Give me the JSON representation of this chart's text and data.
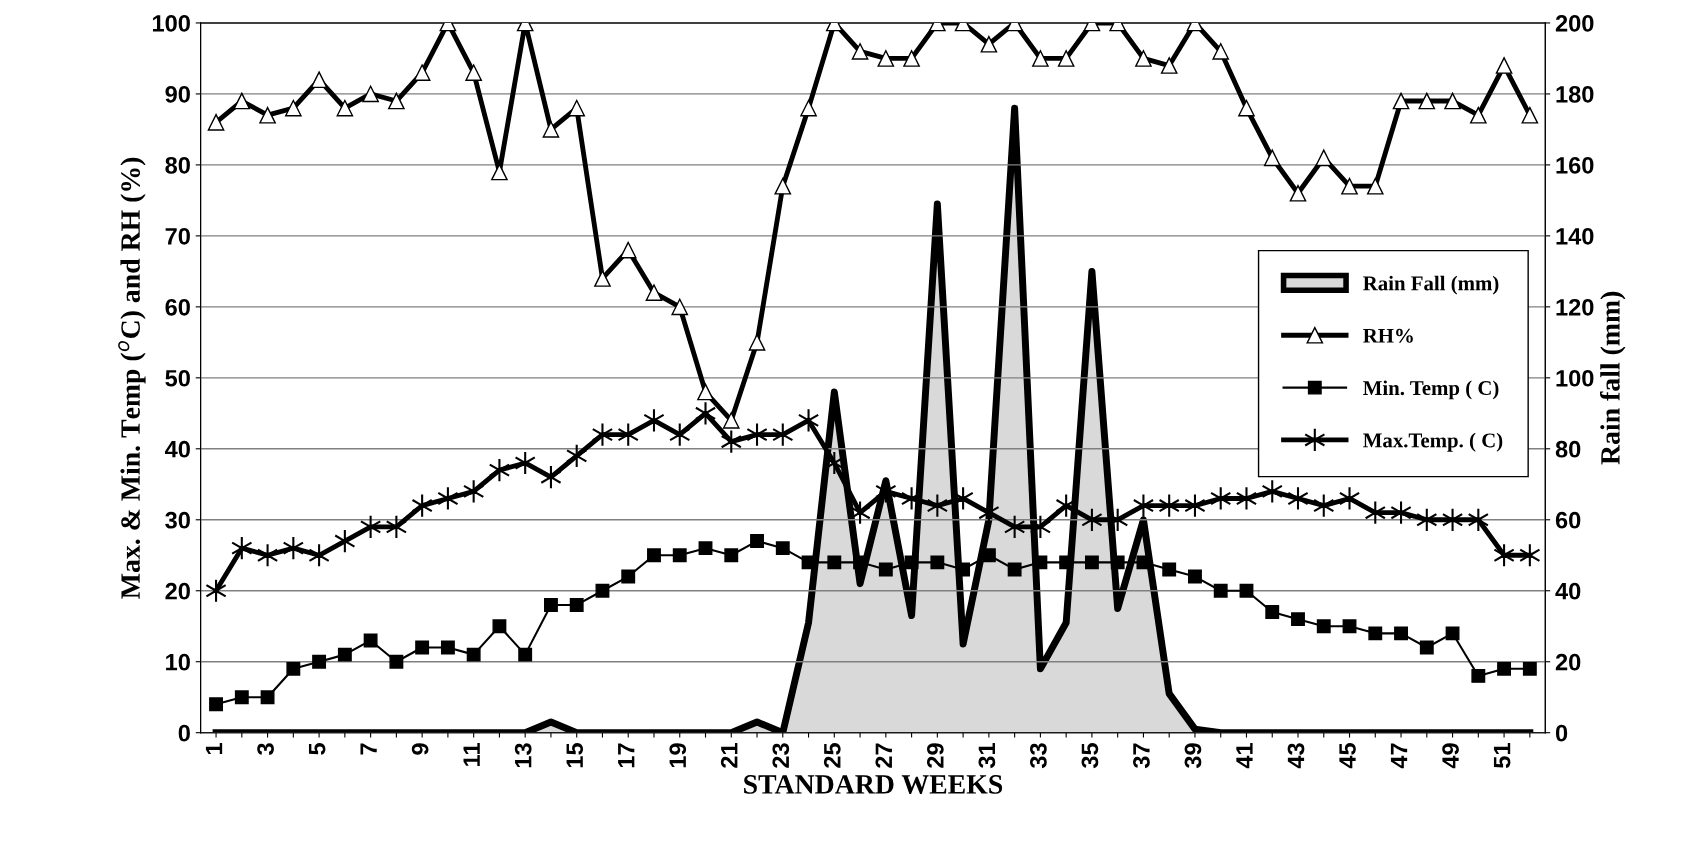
{
  "chart_data": {
    "type": "line",
    "xlabel": "STANDARD WEEKS",
    "ylabel": "Max. & Min. Temp ($^{o}$C) and RH (%)",
    "y2label": "Rain fall (mm)",
    "categories": [
      "1",
      null,
      "3",
      null,
      "5",
      null,
      "7",
      null,
      "9",
      null,
      "11",
      null,
      "13",
      null,
      "15",
      null,
      "17",
      null,
      "19",
      null,
      "21",
      null,
      "23",
      null,
      "25",
      null,
      "27",
      null,
      "29",
      null,
      "31",
      null,
      "33",
      null,
      "35",
      null,
      "37",
      null,
      "39",
      null,
      "41",
      null,
      "43",
      null,
      "45",
      null,
      "47",
      null,
      "49",
      null,
      "51",
      null
    ],
    "series": [
      {
        "name": "Rain Fall (mm)",
        "type": "area",
        "axis": "y2",
        "color": "#d9d9d9",
        "values": [
          0,
          0,
          0,
          0,
          0,
          0,
          0,
          0,
          0,
          0,
          0,
          0,
          0,
          3,
          0,
          0,
          0,
          0,
          0,
          0,
          0,
          3,
          0,
          31,
          96,
          42,
          71,
          33,
          149,
          25,
          60,
          176,
          18,
          31,
          130,
          35,
          60,
          11,
          1,
          0,
          0,
          0,
          0,
          0,
          0,
          0,
          0,
          0,
          0,
          0,
          0,
          0
        ]
      },
      {
        "name": "RH%",
        "color": "#000000",
        "marker": "triangle",
        "values": [
          86,
          89,
          87,
          88,
          92,
          88,
          90,
          89,
          93,
          100,
          93,
          79,
          100,
          85,
          88,
          64,
          68,
          62,
          60,
          48,
          44,
          55,
          77,
          88,
          100,
          96,
          95,
          95,
          100,
          100,
          97,
          100,
          95,
          95,
          100,
          100,
          95,
          94,
          100,
          96,
          88,
          81,
          76,
          81,
          77,
          77,
          89,
          89,
          89,
          87,
          94,
          87
        ]
      },
      {
        "name": "Min. Temp ( C)",
        "color": "#000000",
        "marker": "square",
        "values": [
          4,
          5,
          5,
          9,
          10,
          11,
          13,
          10,
          12,
          12,
          11,
          15,
          11,
          18,
          18,
          20,
          22,
          25,
          25,
          26,
          25,
          27,
          26,
          24,
          24,
          24,
          23,
          24,
          24,
          23,
          25,
          23,
          24,
          24,
          24,
          24,
          24,
          23,
          22,
          20,
          20,
          17,
          16,
          15,
          15,
          14,
          14,
          12,
          14,
          8,
          9,
          9
        ]
      },
      {
        "name": "Max.Temp. ( C)",
        "color": "#000000",
        "marker": "cross",
        "values": [
          20,
          26,
          25,
          26,
          25,
          27,
          29,
          29,
          32,
          33,
          34,
          37,
          38,
          36,
          39,
          42,
          42,
          44,
          42,
          45,
          41,
          42,
          42,
          44,
          38,
          31,
          34,
          33,
          32,
          33,
          31,
          29,
          29,
          32,
          30,
          30,
          32,
          32,
          32,
          33,
          33,
          34,
          33,
          32,
          33,
          31,
          31,
          30,
          30,
          30,
          25,
          25
        ]
      }
    ],
    "ylim": [
      0,
      100
    ],
    "yticks": [
      0,
      10,
      20,
      30,
      40,
      50,
      60,
      70,
      80,
      90,
      100
    ],
    "y2lim": [
      0,
      200
    ],
    "y2ticks": [
      0,
      20,
      40,
      60,
      80,
      100,
      120,
      140,
      160,
      180,
      200
    ],
    "grid": "y",
    "legend": "right"
  }
}
